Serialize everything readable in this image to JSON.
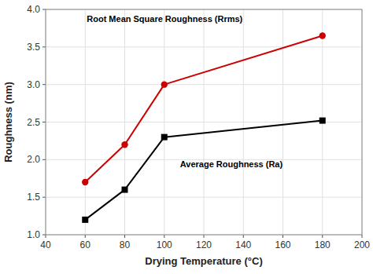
{
  "chart_data": {
    "type": "line",
    "x_label": "Drying Temperature (°C)",
    "y_label": "Roughness (nm)",
    "x": [
      60,
      80,
      100,
      180
    ],
    "series": [
      {
        "name": "Root Mean Square Roughness (Rrms)",
        "color": "#cc0000",
        "marker": "circle",
        "values": [
          1.7,
          2.2,
          3.0,
          3.65
        ]
      },
      {
        "name": "Average Roughness (Ra)",
        "color": "#000000",
        "marker": "square",
        "values": [
          1.2,
          1.6,
          2.3,
          2.52
        ]
      }
    ],
    "xlim": [
      40,
      200
    ],
    "ylim": [
      1.0,
      4.0
    ],
    "xticks": [
      40,
      60,
      80,
      100,
      120,
      140,
      160,
      180,
      200
    ],
    "yticks": [
      {
        "value": 1.0,
        "label": "1.0"
      },
      1.5,
      {
        "value": 2.0,
        "label": "2.0"
      },
      2.5,
      {
        "value": 3.0,
        "label": "3.0"
      },
      3.5,
      {
        "value": 4.0,
        "label": "4.0"
      }
    ],
    "grid": true
  }
}
